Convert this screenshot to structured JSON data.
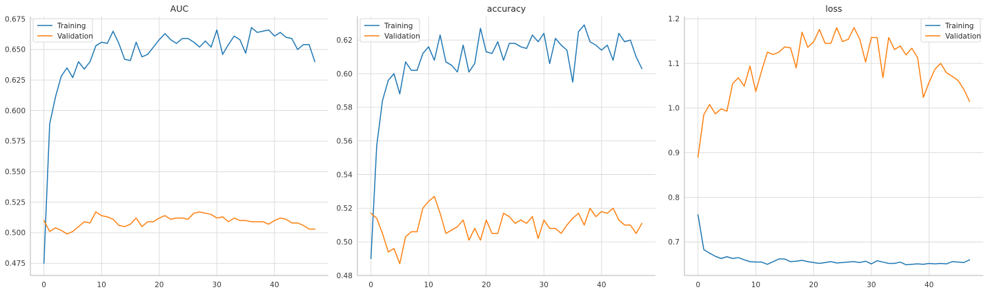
{
  "colors": {
    "training": "#1f77b4",
    "validation": "#ff7f0e"
  },
  "chart_data": [
    {
      "type": "line",
      "title": "AUC",
      "xlabel": "",
      "ylabel": "",
      "xlim": [
        -2.35,
        49.35
      ],
      "ylim": [
        0.465,
        0.677
      ],
      "xticks": [
        0,
        10,
        20,
        30,
        40
      ],
      "yticks": [
        0.475,
        0.5,
        0.525,
        0.55,
        0.575,
        0.6,
        0.625,
        0.65,
        0.675
      ],
      "ytick_labels": [
        "0.475",
        "0.500",
        "0.525",
        "0.550",
        "0.575",
        "0.600",
        "0.625",
        "0.650",
        "0.675"
      ],
      "grid": true,
      "legend": "upper-left",
      "x": [
        0,
        1,
        2,
        3,
        4,
        5,
        6,
        7,
        8,
        9,
        10,
        11,
        12,
        13,
        14,
        15,
        16,
        17,
        18,
        19,
        20,
        21,
        22,
        23,
        24,
        25,
        26,
        27,
        28,
        29,
        30,
        31,
        32,
        33,
        34,
        35,
        36,
        37,
        38,
        39,
        40,
        41,
        42,
        43,
        44,
        45,
        46,
        47
      ],
      "series": [
        {
          "name": "Training",
          "color_key": "training",
          "values": [
            0.475,
            0.589,
            0.611,
            0.628,
            0.635,
            0.627,
            0.64,
            0.634,
            0.64,
            0.653,
            0.656,
            0.655,
            0.665,
            0.655,
            0.642,
            0.641,
            0.656,
            0.644,
            0.646,
            0.652,
            0.658,
            0.663,
            0.658,
            0.655,
            0.659,
            0.659,
            0.656,
            0.652,
            0.657,
            0.652,
            0.666,
            0.646,
            0.654,
            0.661,
            0.658,
            0.647,
            0.668,
            0.664,
            0.665,
            0.666,
            0.661,
            0.664,
            0.66,
            0.659,
            0.65,
            0.654,
            0.654,
            0.64
          ]
        },
        {
          "name": "Validation",
          "color_key": "validation",
          "values": [
            0.51,
            0.501,
            0.504,
            0.502,
            0.499,
            0.501,
            0.505,
            0.509,
            0.508,
            0.517,
            0.514,
            0.513,
            0.511,
            0.506,
            0.505,
            0.507,
            0.512,
            0.505,
            0.509,
            0.509,
            0.512,
            0.514,
            0.511,
            0.512,
            0.512,
            0.511,
            0.516,
            0.517,
            0.516,
            0.515,
            0.512,
            0.513,
            0.509,
            0.512,
            0.51,
            0.51,
            0.509,
            0.509,
            0.509,
            0.507,
            0.51,
            0.512,
            0.511,
            0.508,
            0.508,
            0.506,
            0.503,
            0.503
          ]
        }
      ]
    },
    {
      "type": "line",
      "title": "accuracy",
      "xlabel": "",
      "ylabel": "",
      "xlim": [
        -2.35,
        49.35
      ],
      "ylim": [
        0.48,
        0.634
      ],
      "xticks": [
        0,
        10,
        20,
        30,
        40
      ],
      "yticks": [
        0.48,
        0.5,
        0.52,
        0.54,
        0.56,
        0.58,
        0.6,
        0.62
      ],
      "ytick_labels": [
        "0.48",
        "0.50",
        "0.52",
        "0.54",
        "0.56",
        "0.58",
        "0.60",
        "0.62"
      ],
      "grid": true,
      "legend": "upper-left",
      "x": [
        0,
        1,
        2,
        3,
        4,
        5,
        6,
        7,
        8,
        9,
        10,
        11,
        12,
        13,
        14,
        15,
        16,
        17,
        18,
        19,
        20,
        21,
        22,
        23,
        24,
        25,
        26,
        27,
        28,
        29,
        30,
        31,
        32,
        33,
        34,
        35,
        36,
        37,
        38,
        39,
        40,
        41,
        42,
        43,
        44,
        45,
        46,
        47
      ],
      "series": [
        {
          "name": "Training",
          "color_key": "training",
          "values": [
            0.49,
            0.557,
            0.584,
            0.596,
            0.6,
            0.588,
            0.607,
            0.602,
            0.602,
            0.612,
            0.616,
            0.608,
            0.623,
            0.607,
            0.605,
            0.601,
            0.617,
            0.601,
            0.606,
            0.627,
            0.613,
            0.612,
            0.619,
            0.608,
            0.618,
            0.618,
            0.616,
            0.615,
            0.623,
            0.619,
            0.624,
            0.606,
            0.621,
            0.617,
            0.614,
            0.595,
            0.625,
            0.629,
            0.619,
            0.617,
            0.614,
            0.617,
            0.608,
            0.624,
            0.619,
            0.62,
            0.61,
            0.603
          ]
        },
        {
          "name": "Validation",
          "color_key": "validation",
          "values": [
            0.517,
            0.514,
            0.505,
            0.494,
            0.496,
            0.487,
            0.503,
            0.506,
            0.506,
            0.52,
            0.524,
            0.527,
            0.517,
            0.505,
            0.507,
            0.509,
            0.513,
            0.501,
            0.508,
            0.501,
            0.513,
            0.505,
            0.505,
            0.517,
            0.515,
            0.511,
            0.513,
            0.511,
            0.515,
            0.502,
            0.513,
            0.508,
            0.508,
            0.505,
            0.51,
            0.514,
            0.517,
            0.51,
            0.52,
            0.515,
            0.518,
            0.517,
            0.52,
            0.513,
            0.51,
            0.51,
            0.505,
            0.511
          ]
        }
      ]
    },
    {
      "type": "line",
      "title": "loss",
      "xlabel": "",
      "ylabel": "",
      "xlim": [
        -2.35,
        49.35
      ],
      "ylim": [
        0.625,
        1.205
      ],
      "xticks": [
        0,
        10,
        20,
        30,
        40
      ],
      "yticks": [
        0.7,
        0.8,
        0.9,
        1.0,
        1.1,
        1.2
      ],
      "ytick_labels": [
        "0.7",
        "0.8",
        "0.9",
        "1.0",
        "1.1",
        "1.2"
      ],
      "grid": true,
      "legend": "upper-right",
      "x": [
        0,
        1,
        2,
        3,
        4,
        5,
        6,
        7,
        8,
        9,
        10,
        11,
        12,
        13,
        14,
        15,
        16,
        17,
        18,
        19,
        20,
        21,
        22,
        23,
        24,
        25,
        26,
        27,
        28,
        29,
        30,
        31,
        32,
        33,
        34,
        35,
        36,
        37,
        38,
        39,
        40,
        41,
        42,
        43,
        44,
        45,
        46,
        47
      ],
      "series": [
        {
          "name": "Training",
          "color_key": "training",
          "values": [
            0.761,
            0.683,
            0.675,
            0.668,
            0.663,
            0.667,
            0.663,
            0.665,
            0.66,
            0.656,
            0.655,
            0.655,
            0.65,
            0.656,
            0.662,
            0.662,
            0.656,
            0.657,
            0.659,
            0.656,
            0.654,
            0.652,
            0.654,
            0.656,
            0.653,
            0.654,
            0.655,
            0.656,
            0.654,
            0.657,
            0.651,
            0.658,
            0.655,
            0.652,
            0.652,
            0.655,
            0.649,
            0.65,
            0.651,
            0.65,
            0.652,
            0.651,
            0.652,
            0.651,
            0.656,
            0.655,
            0.654,
            0.66
          ]
        },
        {
          "name": "Validation",
          "color_key": "validation",
          "values": [
            0.89,
            0.985,
            1.008,
            0.987,
            0.998,
            0.993,
            1.055,
            1.068,
            1.049,
            1.094,
            1.037,
            1.083,
            1.125,
            1.12,
            1.125,
            1.137,
            1.135,
            1.09,
            1.17,
            1.136,
            1.148,
            1.176,
            1.145,
            1.145,
            1.18,
            1.149,
            1.154,
            1.18,
            1.154,
            1.103,
            1.158,
            1.158,
            1.068,
            1.158,
            1.131,
            1.139,
            1.119,
            1.134,
            1.113,
            1.024,
            1.058,
            1.087,
            1.1,
            1.079,
            1.071,
            1.062,
            1.042,
            1.015
          ]
        }
      ]
    }
  ]
}
